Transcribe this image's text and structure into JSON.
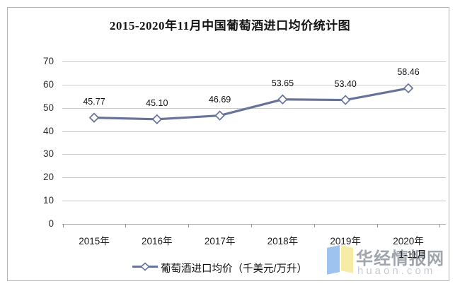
{
  "chart_data": {
    "type": "line",
    "title": "2015-2020年11月中国葡萄酒进口均价统计图",
    "categories": [
      "2015年",
      "2016年",
      "2017年",
      "2018年",
      "2019年",
      "2020年1-11月"
    ],
    "x_tick_labels": [
      [
        "2015年"
      ],
      [
        "2016年"
      ],
      [
        "2017年"
      ],
      [
        "2018年"
      ],
      [
        "2019年"
      ],
      [
        "2020年",
        "1-11月"
      ]
    ],
    "series": [
      {
        "name": "葡萄酒进口均价（千美元/万升）",
        "values": [
          45.77,
          45.1,
          46.69,
          53.65,
          53.4,
          58.46
        ],
        "color": "#68739a",
        "marker": "open-diamond"
      }
    ],
    "ylim": [
      0,
      70
    ],
    "yticks": [
      0,
      10,
      20,
      30,
      40,
      50,
      60,
      70
    ],
    "grid": "horizontal",
    "legend_position": "bottom-center",
    "data_labels_shown": true
  },
  "legend": {
    "label": "葡萄酒进口均价（千美元/万升）"
  },
  "watermark": {
    "name": "华经情报网",
    "domain": "huaon.com",
    "logo_blue": "#9ec3ee",
    "logo_yellow": "#f6eca6"
  },
  "colors": {
    "line": "#68739a",
    "marker_fill": "#ffffff",
    "grid": "#cacaca",
    "axis": "#a9a9a9",
    "border": "#b5b5b5",
    "title_text": "#151515",
    "label_text": "#101010",
    "watermark_name": "#a0a5ab",
    "watermark_domain": "#c6ccd4"
  }
}
